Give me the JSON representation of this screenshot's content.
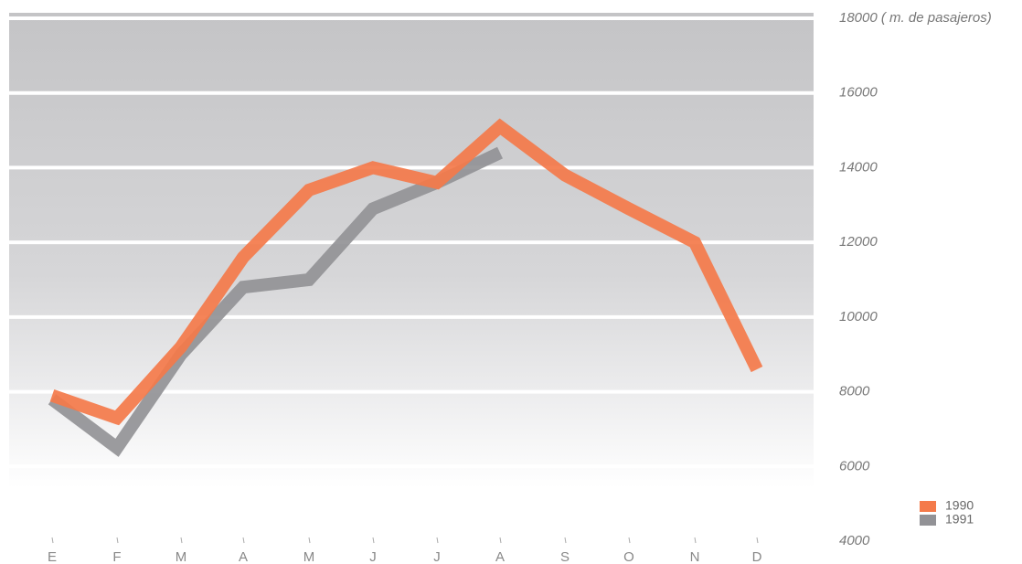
{
  "chart_data": {
    "type": "line",
    "categories": [
      "E",
      "F",
      "M",
      "A",
      "M",
      "J",
      "J",
      "A",
      "S",
      "O",
      "N",
      "D"
    ],
    "series": [
      {
        "name": "1990",
        "color": "#f47a4a",
        "values": [
          7900,
          7300,
          9200,
          11600,
          13400,
          14000,
          13600,
          15100,
          13800,
          12900,
          12000,
          8600
        ]
      },
      {
        "name": "1991",
        "color": "#929296",
        "values": [
          7800,
          6500,
          9000,
          10800,
          11000,
          12900,
          13600,
          14400,
          null,
          null,
          null,
          null
        ]
      }
    ],
    "ylim": [
      4000,
      18000
    ],
    "yticks": [
      4000,
      6000,
      8000,
      10000,
      12000,
      14000,
      16000,
      {
        "value": 18000,
        "label": "18000 ( m. de pasajeros)"
      }
    ],
    "grid": true,
    "legend": "bottom-right"
  }
}
